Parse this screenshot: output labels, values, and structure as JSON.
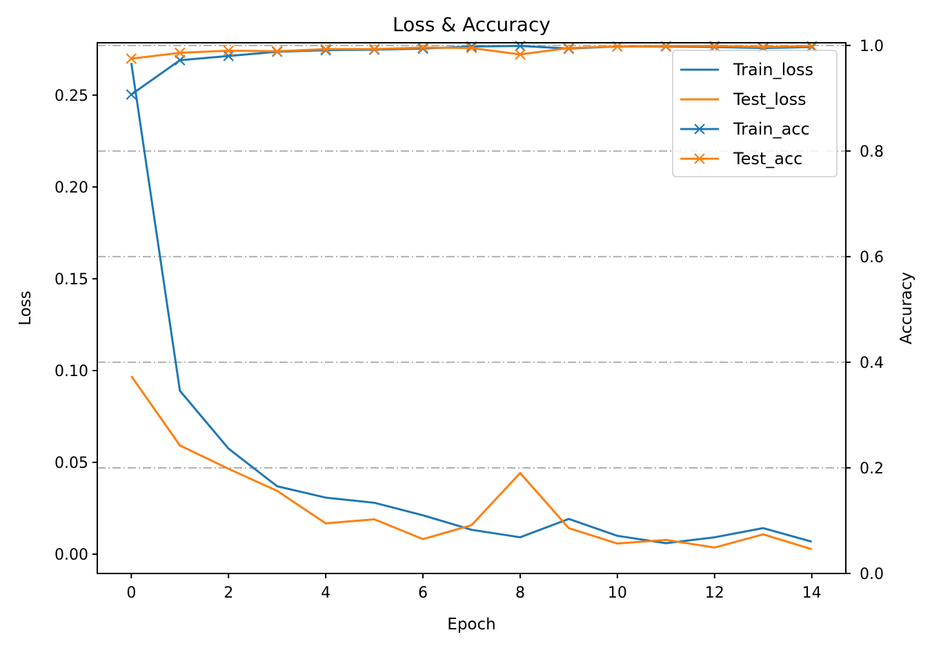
{
  "chart_data": {
    "type": "line",
    "title": "Loss & Accuracy",
    "xlabel": "Epoch",
    "ylabel": "Loss",
    "y2label": "Accuracy",
    "x": [
      0,
      1,
      2,
      3,
      4,
      5,
      6,
      7,
      8,
      9,
      10,
      11,
      12,
      13,
      14
    ],
    "xlim": [
      -0.7,
      14.7
    ],
    "ylim": [
      -0.0105,
      0.2785
    ],
    "y2lim": [
      0.0,
      1.005
    ],
    "xticks": [
      0,
      2,
      4,
      6,
      8,
      10,
      12,
      14
    ],
    "yticks": [
      0.0,
      0.05,
      0.1,
      0.15,
      0.2,
      0.25
    ],
    "ytick_labels": [
      "0.00",
      "0.05",
      "0.10",
      "0.15",
      "0.20",
      "0.25"
    ],
    "y2ticks": [
      0.0,
      0.2,
      0.4,
      0.6,
      0.8,
      1.0
    ],
    "y2tick_labels": [
      "0.0",
      "0.2",
      "0.4",
      "0.6",
      "0.8",
      "1.0"
    ],
    "grid": "horizontal dash-dot on accuracy axis",
    "legend_position": "top-right",
    "series": [
      {
        "name": "Train_loss",
        "axis": "left",
        "color": "#1f77b4",
        "marker": "none",
        "values": [
          0.2675,
          0.089,
          0.0575,
          0.037,
          0.0308,
          0.028,
          0.0212,
          0.0133,
          0.0092,
          0.0192,
          0.01,
          0.006,
          0.0092,
          0.0142,
          0.0068
        ]
      },
      {
        "name": "Test_loss",
        "axis": "left",
        "color": "#ff7f0e",
        "marker": "none",
        "values": [
          0.097,
          0.0592,
          0.0465,
          0.0345,
          0.0168,
          0.019,
          0.0082,
          0.0158,
          0.0442,
          0.0142,
          0.0058,
          0.0078,
          0.0036,
          0.0108,
          0.0027
        ]
      },
      {
        "name": "Train_acc",
        "axis": "right",
        "color": "#1f77b4",
        "marker": "x",
        "values": [
          0.907,
          0.972,
          0.98,
          0.988,
          0.991,
          0.992,
          0.994,
          0.998,
          0.999,
          0.994,
          0.998,
          0.998,
          0.997,
          0.995,
          0.997
        ]
      },
      {
        "name": "Test_acc",
        "axis": "right",
        "color": "#ff7f0e",
        "marker": "x",
        "values": [
          0.975,
          0.986,
          0.99,
          0.989,
          0.993,
          0.993,
          0.996,
          0.995,
          0.983,
          0.995,
          0.998,
          0.999,
          0.999,
          0.997,
          0.999
        ]
      }
    ]
  }
}
